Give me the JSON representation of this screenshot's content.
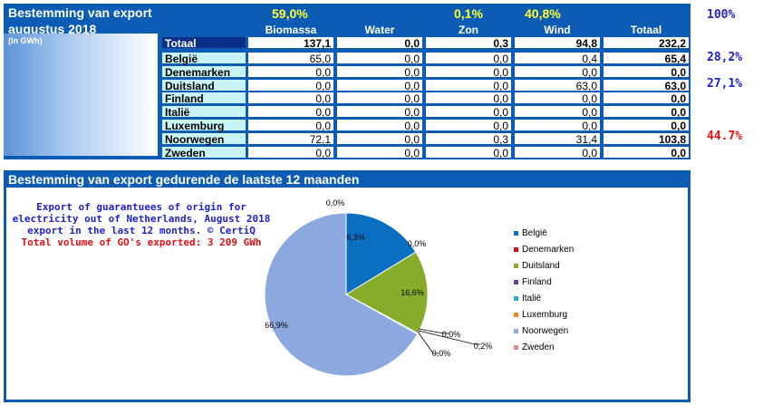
{
  "top": {
    "title": "Bestemming van export",
    "period": "augustus 2018",
    "unit": "(In GWh)",
    "columns": [
      "Biomassa",
      "Water",
      "Zon",
      "Wind",
      "Totaal"
    ],
    "shares": {
      "biomassa": "59,0%",
      "zon": "0,1%",
      "wind": "40,8%"
    },
    "total_row": {
      "label": "Totaal",
      "values": [
        "137,1",
        "0,0",
        "0,3",
        "94,8",
        "232,2"
      ]
    },
    "rows": [
      {
        "label": "België",
        "values": [
          "65,0",
          "0,0",
          "0,0",
          "0,4",
          "65,4"
        ]
      },
      {
        "label": "Denemarken",
        "values": [
          "0,0",
          "0,0",
          "0,0",
          "0,0",
          "0,0"
        ]
      },
      {
        "label": "Duitsland",
        "values": [
          "0,0",
          "0,0",
          "0,0",
          "63,0",
          "63,0"
        ]
      },
      {
        "label": "Finland",
        "values": [
          "0,0",
          "0,0",
          "0,0",
          "0,0",
          "0,0"
        ]
      },
      {
        "label": "Italië",
        "values": [
          "0,0",
          "0,0",
          "0,0",
          "0,0",
          "0,0"
        ]
      },
      {
        "label": "Luxemburg",
        "values": [
          "0,0",
          "0,0",
          "0,0",
          "0,0",
          "0,0"
        ]
      },
      {
        "label": "Noorwegen",
        "values": [
          "72,1",
          "0,0",
          "0,3",
          "31,4",
          "103,8"
        ]
      },
      {
        "label": "Zweden",
        "values": [
          "0,0",
          "0,0",
          "0,0",
          "0,0",
          "0,0"
        ]
      }
    ],
    "right_percentages": {
      "total": "100%",
      "belgie": "28,2%",
      "duitsland": "27,1%",
      "noorwegen": "44.7%"
    },
    "colors": {
      "header_bg": "#0c5bb5",
      "share_text": "#ffff33",
      "blue_pct": "#1f1fd0",
      "red_pct": "#e01010"
    }
  },
  "bottom": {
    "title": "Bestemming van export gedurende de laatste 12 maanden",
    "note_lines": [
      "Export of guarantuees of origin for",
      "electricity out of Netherlands, August 2018",
      "export in the last 12 months. © CertiQ"
    ],
    "note_total": "Total volume of GO's exported: 3 209 GWh"
  },
  "chart_data": {
    "type": "pie",
    "slices": [
      {
        "name": "België",
        "value": 16.3,
        "label": "16,3%",
        "color": "#0a6fc2"
      },
      {
        "name": "Denemarken",
        "value": 0.0,
        "label": "0,0%",
        "color": "#d0101a"
      },
      {
        "name": "Duitsland",
        "value": 16.6,
        "label": "16,6%",
        "color": "#86ad2a"
      },
      {
        "name": "Finland",
        "value": 0.0,
        "label": "0,0%",
        "color": "#6a3f9e"
      },
      {
        "name": "Italië",
        "value": 0.0,
        "label": "0,0%",
        "color": "#27b3cf"
      },
      {
        "name": "Luxemburg",
        "value": 0.2,
        "label": "0,2%",
        "color": "#f08a1c"
      },
      {
        "name": "Noorwegen",
        "value": 66.9,
        "label": "66,9%",
        "color": "#8ba9df"
      },
      {
        "name": "Zweden",
        "value": 0.0,
        "label": "0,0%",
        "color": "#e28888"
      }
    ],
    "legend_placement": "right"
  }
}
